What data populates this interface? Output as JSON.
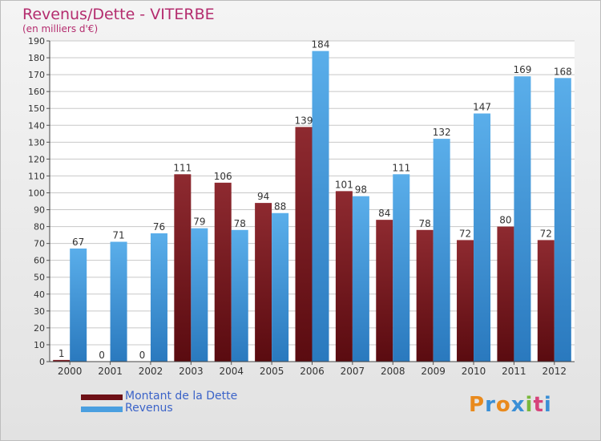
{
  "header": {
    "title": "Revenus/Dette - VITERBE",
    "subtitle": "(en milliers d'€)"
  },
  "logo": {
    "letters": [
      "P",
      "r",
      "o",
      "x",
      "i",
      "t",
      "i"
    ],
    "colors": [
      "#e98a1d",
      "#3a8fd6",
      "#e98a1d",
      "#3a8fd6",
      "#7ab83c",
      "#d6437a",
      "#3a8fd6"
    ]
  },
  "chart_data": {
    "type": "bar",
    "title": "Revenus/Dette - VITERBE",
    "subtitle": "(en milliers d'€)",
    "categories": [
      "2000",
      "2001",
      "2002",
      "2003",
      "2004",
      "2005",
      "2006",
      "2007",
      "2008",
      "2009",
      "2010",
      "2011",
      "2012"
    ],
    "series": [
      {
        "name": "Montant de la Dette",
        "color": "#7d1e23",
        "values": [
          1,
          0,
          0,
          111,
          106,
          94,
          139,
          101,
          84,
          78,
          72,
          80,
          72
        ]
      },
      {
        "name": "Revenus",
        "color": "#4a9fe0",
        "values": [
          67,
          71,
          76,
          79,
          78,
          88,
          184,
          98,
          111,
          132,
          147,
          169,
          168
        ]
      }
    ],
    "yticks": [
      0,
      10,
      20,
      30,
      40,
      50,
      60,
      70,
      80,
      90,
      100,
      110,
      120,
      130,
      140,
      150,
      160,
      170,
      180,
      190
    ],
    "ylim": [
      0,
      190
    ],
    "grid": true,
    "legend": "bottom-left"
  }
}
